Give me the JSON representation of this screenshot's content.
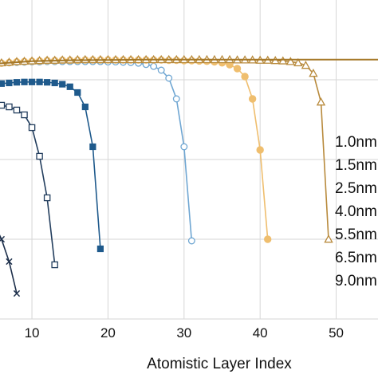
{
  "chart_data": {
    "type": "line",
    "xlabel": "Atomistic Layer Index",
    "ylabel": "",
    "title": "",
    "grid": true,
    "xticks": [
      10,
      20,
      30,
      40,
      50
    ],
    "xlim": [
      5.8,
      55.5
    ],
    "ylim": [
      0,
      1
    ],
    "series": [
      {
        "name": "1.0nm",
        "color": "#1c2e4a",
        "marker": "x",
        "x": [
          5,
          6,
          7,
          8
        ],
        "y": [
          0.3,
          0.25,
          0.18,
          0.08
        ]
      },
      {
        "name": "1.5nm",
        "color": "#233e5e",
        "marker": "open-square",
        "x": [
          5,
          6,
          7,
          8,
          9,
          10,
          11,
          12,
          13
        ],
        "y": [
          0.665,
          0.67,
          0.665,
          0.655,
          0.64,
          0.6,
          0.51,
          0.38,
          0.17
        ]
      },
      {
        "name": "2.5nm",
        "color": "#1f5a8c",
        "marker": "filled-square",
        "x": [
          5,
          6,
          7,
          8,
          9,
          10,
          11,
          12,
          13,
          14,
          15,
          16,
          17,
          18,
          19
        ],
        "y": [
          0.735,
          0.738,
          0.74,
          0.742,
          0.743,
          0.743,
          0.743,
          0.742,
          0.74,
          0.736,
          0.728,
          0.71,
          0.665,
          0.54,
          0.22
        ]
      },
      {
        "name": "4.0nm",
        "color": "#6fa6d2",
        "marker": "open-circle",
        "x": [
          5,
          6,
          7,
          8,
          9,
          10,
          11,
          12,
          13,
          14,
          15,
          16,
          17,
          18,
          19,
          20,
          21,
          22,
          23,
          24,
          25,
          26,
          27,
          28,
          29,
          30,
          31
        ],
        "y": [
          0.8,
          0.802,
          0.803,
          0.804,
          0.805,
          0.806,
          0.806,
          0.807,
          0.807,
          0.807,
          0.807,
          0.807,
          0.807,
          0.807,
          0.807,
          0.806,
          0.806,
          0.805,
          0.804,
          0.802,
          0.798,
          0.792,
          0.78,
          0.755,
          0.69,
          0.54,
          0.245
        ]
      },
      {
        "name": "5.5nm",
        "color": "#efbe6e",
        "marker": "filled-circle",
        "x": [
          5,
          6,
          7,
          8,
          9,
          10,
          11,
          12,
          13,
          14,
          15,
          16,
          17,
          18,
          19,
          20,
          21,
          22,
          23,
          24,
          25,
          26,
          27,
          28,
          29,
          30,
          31,
          32,
          33,
          34,
          35,
          36,
          37,
          38,
          39,
          40,
          41
        ],
        "y": [
          0.8,
          0.802,
          0.804,
          0.806,
          0.807,
          0.808,
          0.809,
          0.81,
          0.81,
          0.811,
          0.811,
          0.811,
          0.812,
          0.812,
          0.812,
          0.812,
          0.812,
          0.812,
          0.812,
          0.812,
          0.812,
          0.812,
          0.812,
          0.811,
          0.811,
          0.81,
          0.81,
          0.809,
          0.808,
          0.806,
          0.803,
          0.797,
          0.785,
          0.76,
          0.69,
          0.53,
          0.25
        ]
      },
      {
        "name": "6.5nm",
        "color": "#b88a3c",
        "marker": "open-triangle",
        "x": [
          5,
          6,
          7,
          8,
          9,
          10,
          11,
          12,
          13,
          14,
          15,
          16,
          17,
          18,
          19,
          20,
          21,
          22,
          23,
          24,
          25,
          26,
          27,
          28,
          29,
          30,
          31,
          32,
          33,
          34,
          35,
          36,
          37,
          38,
          39,
          40,
          41,
          42,
          43,
          44,
          45,
          46,
          47,
          48,
          49
        ],
        "y": [
          0.8,
          0.803,
          0.805,
          0.807,
          0.808,
          0.809,
          0.81,
          0.811,
          0.811,
          0.812,
          0.812,
          0.813,
          0.813,
          0.813,
          0.813,
          0.813,
          0.813,
          0.813,
          0.813,
          0.813,
          0.813,
          0.813,
          0.813,
          0.813,
          0.813,
          0.813,
          0.813,
          0.813,
          0.813,
          0.813,
          0.813,
          0.813,
          0.812,
          0.812,
          0.812,
          0.811,
          0.811,
          0.81,
          0.809,
          0.807,
          0.803,
          0.795,
          0.77,
          0.68,
          0.25
        ]
      },
      {
        "name": "9.0nm",
        "color": "#a57828",
        "marker": "none",
        "x": [
          5,
          10,
          15,
          20,
          25,
          30,
          35,
          40,
          45,
          50,
          55.5
        ],
        "y": [
          0.8,
          0.808,
          0.811,
          0.812,
          0.813,
          0.813,
          0.813,
          0.813,
          0.813,
          0.813,
          0.813
        ]
      }
    ]
  }
}
